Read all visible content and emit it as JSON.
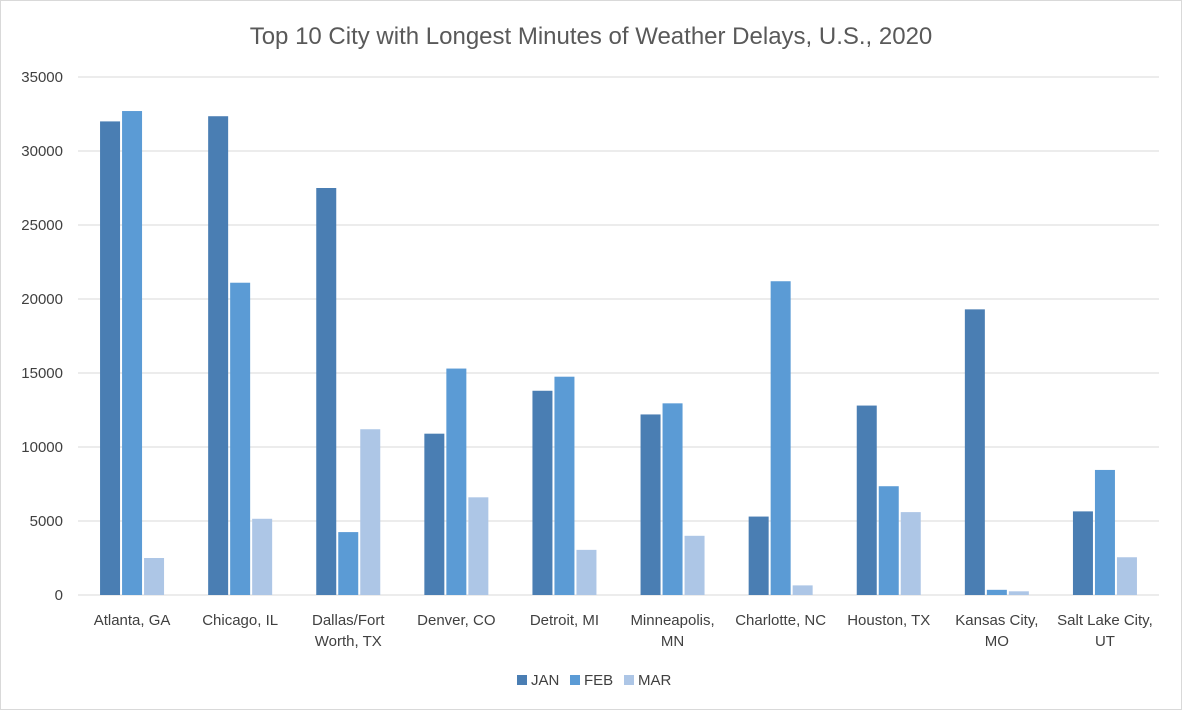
{
  "chart_data": {
    "type": "bar",
    "title": "Top 10 City with Longest Minutes of Weather Delays, U.S., 2020",
    "xlabel": "",
    "ylabel": "",
    "ylim": [
      0,
      35000
    ],
    "yticks": [
      0,
      5000,
      10000,
      15000,
      20000,
      25000,
      30000,
      35000
    ],
    "grid": true,
    "legend_position": "bottom",
    "categories": [
      [
        "Atlanta, GA"
      ],
      [
        "Chicago, IL"
      ],
      [
        "Dallas/Fort",
        "Worth, TX"
      ],
      [
        "Denver, CO"
      ],
      [
        "Detroit, MI"
      ],
      [
        "Minneapolis,",
        "MN"
      ],
      [
        "Charlotte, NC"
      ],
      [
        "Houston, TX"
      ],
      [
        "Kansas City,",
        "MO"
      ],
      [
        "Salt Lake City,",
        "UT"
      ]
    ],
    "series": [
      {
        "name": "JAN",
        "color": "#4a7eb3",
        "values": [
          32000,
          32350,
          27500,
          10900,
          13800,
          12200,
          5300,
          12800,
          19300,
          5650
        ]
      },
      {
        "name": "FEB",
        "color": "#5b9bd5",
        "values": [
          32700,
          21100,
          4250,
          15300,
          14750,
          12950,
          21200,
          7350,
          350,
          8450
        ]
      },
      {
        "name": "MAR",
        "color": "#adc6e6",
        "values": [
          2500,
          5150,
          11200,
          6600,
          3050,
          4000,
          650,
          5600,
          250,
          2550
        ]
      }
    ]
  }
}
